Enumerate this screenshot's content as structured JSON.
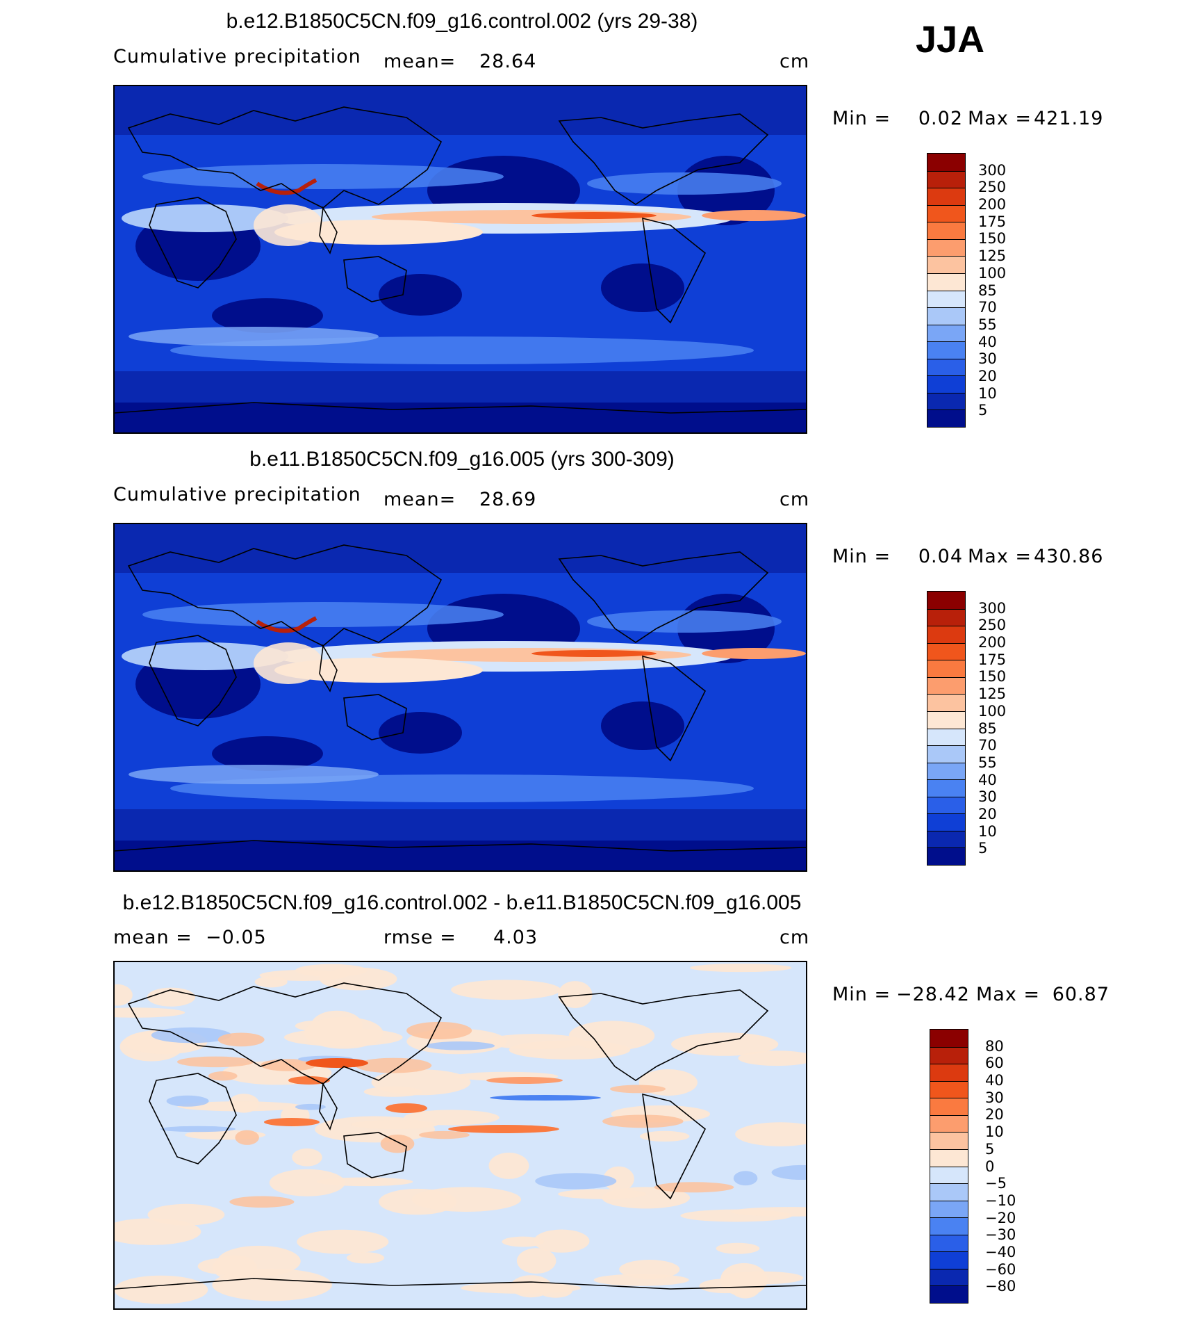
{
  "season": "JJA",
  "panels": [
    {
      "title": "b.e12.B1850C5CN.f09_g16.control.002 (yrs 29-38)",
      "left_label": "Cumulative precipitation",
      "mid_label": "mean=",
      "mid_value": "28.64",
      "units": "cm",
      "min_label": "Min =",
      "min_value": "0.02",
      "max_label": "Max =",
      "max_value": "421.19",
      "colorbar": {
        "ticks": [
          "300",
          "250",
          "200",
          "175",
          "150",
          "125",
          "100",
          "85",
          "70",
          "55",
          "40",
          "30",
          "20",
          "10",
          "5"
        ],
        "colors": [
          "#8b0000",
          "#b8200a",
          "#dc3a10",
          "#f0561c",
          "#fa7a40",
          "#fc9d6e",
          "#fcc3a0",
          "#fde7d4",
          "#d6e6fb",
          "#aac8f8",
          "#7aa6f6",
          "#4a82f2",
          "#2a5fe8",
          "#0f3fd6",
          "#0a28b0",
          "#000e8c"
        ]
      }
    },
    {
      "title": "b.e11.B1850C5CN.f09_g16.005 (yrs 300-309)",
      "left_label": "Cumulative precipitation",
      "mid_label": "mean=",
      "mid_value": "28.69",
      "units": "cm",
      "min_label": "Min =",
      "min_value": "0.04",
      "max_label": "Max =",
      "max_value": "430.86",
      "colorbar": {
        "ticks": [
          "300",
          "250",
          "200",
          "175",
          "150",
          "125",
          "100",
          "85",
          "70",
          "55",
          "40",
          "30",
          "20",
          "10",
          "5"
        ],
        "colors": [
          "#8b0000",
          "#b8200a",
          "#dc3a10",
          "#f0561c",
          "#fa7a40",
          "#fc9d6e",
          "#fcc3a0",
          "#fde7d4",
          "#d6e6fb",
          "#aac8f8",
          "#7aa6f6",
          "#4a82f2",
          "#2a5fe8",
          "#0f3fd6",
          "#0a28b0",
          "#000e8c"
        ]
      }
    },
    {
      "title": "b.e12.B1850C5CN.f09_g16.control.002 - b.e11.B1850C5CN.f09_g16.005",
      "left_label": "mean =  −0.05",
      "mid_label": "rmse =",
      "mid_value": "4.03",
      "units": "cm",
      "min_label": "Min =",
      "min_value": "−28.42",
      "max_label": "Max =",
      "max_value": "60.87",
      "colorbar": {
        "ticks": [
          "80",
          "60",
          "40",
          "30",
          "20",
          "10",
          "5",
          "0",
          "−5",
          "−10",
          "−20",
          "−30",
          "−40",
          "−60",
          "−80"
        ],
        "colors": [
          "#8b0000",
          "#b8200a",
          "#dc3a10",
          "#f0561c",
          "#fa7a40",
          "#fc9d6e",
          "#fcc3a0",
          "#fde7d4",
          "#d6e6fb",
          "#aac8f8",
          "#7aa6f6",
          "#4a82f2",
          "#2a5fe8",
          "#0f3fd6",
          "#0a28b0",
          "#000e8c"
        ]
      }
    }
  ]
}
